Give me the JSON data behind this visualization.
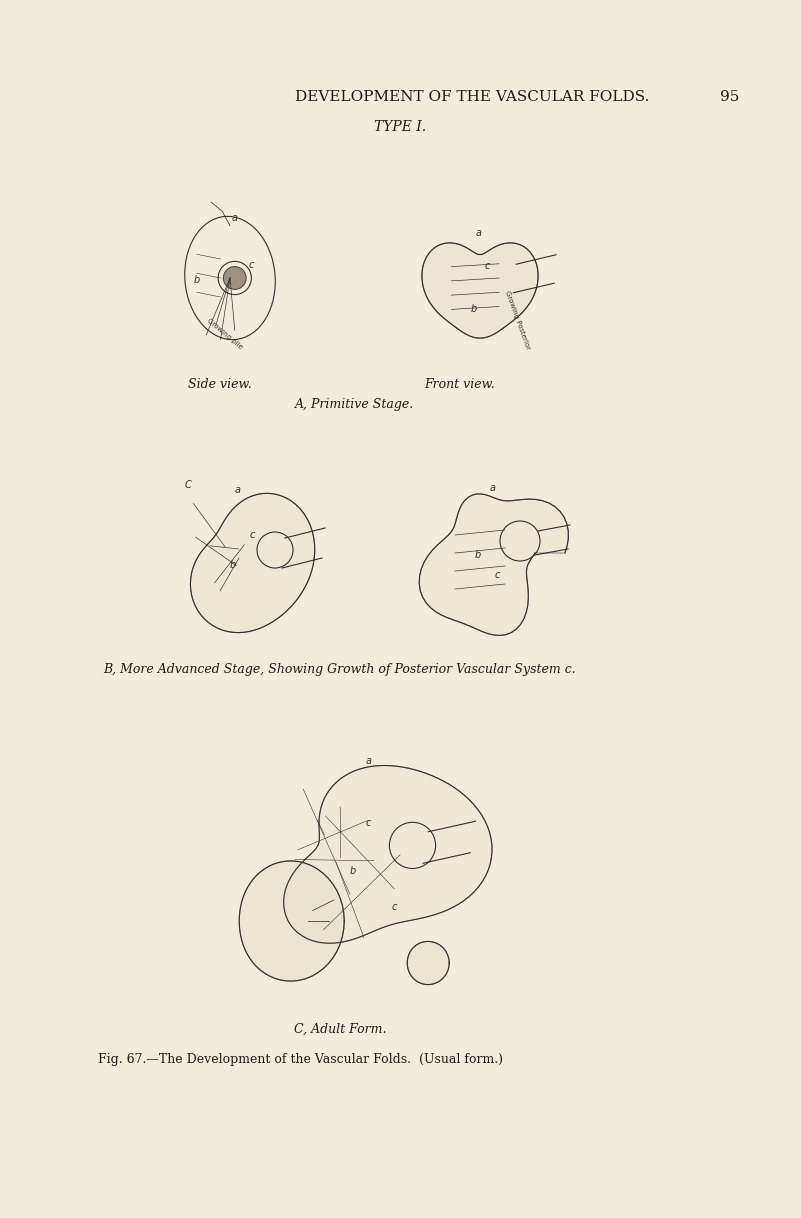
{
  "background_color": "#f5f0dc",
  "page_color": "#f2edda",
  "title": "DEVELOPMENT OF THE VASCULAR FOLDS.",
  "page_number": "95",
  "type_label": "TYPE I.",
  "side_view_label": "Side view.",
  "front_view_label": "Front view.",
  "section_a_label": "A, Primitive Stage.",
  "section_b_label": "B, More Advanced Stage, Showing Growth of Posterior Vascular System c.",
  "section_c_label": "C, Adult Form.",
  "fig_caption": "Fig. 67.—The Development of the Vascular Folds.  (Usual form.)",
  "title_fontsize": 11,
  "caption_fontsize": 9,
  "label_fontsize": 9,
  "text_color": "#1a1a1a",
  "line_color": "#2a2a2a",
  "ink_color": "#303030"
}
